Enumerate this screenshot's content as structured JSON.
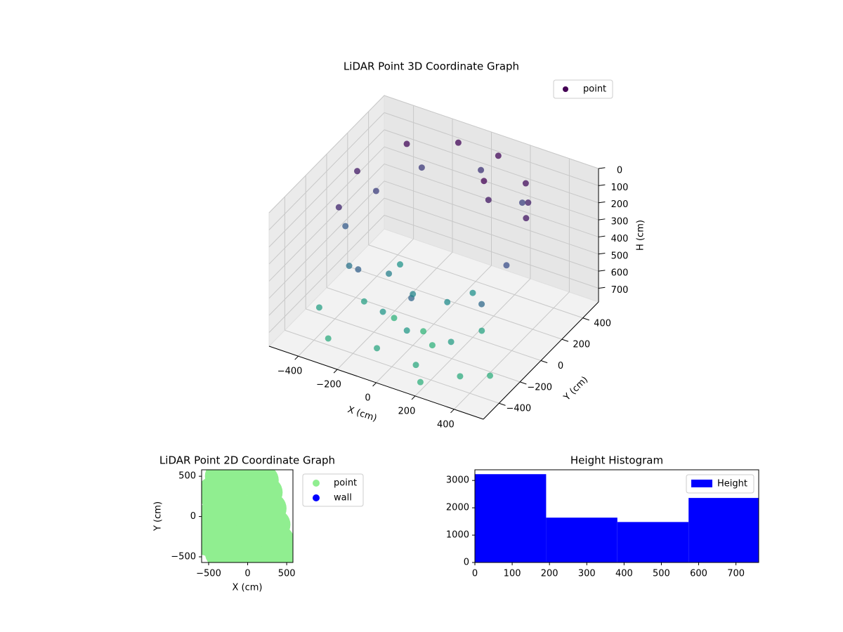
{
  "chart_data": [
    {
      "type": "scatter3d",
      "title": "LiDAR Point 3D Coordinate Graph",
      "xlabel": "X (cm)",
      "ylabel": "Y (cm)",
      "zlabel": "H (cm)",
      "xlim": [
        -550,
        550
      ],
      "ylim": [
        -550,
        550
      ],
      "zlim": [
        780,
        0
      ],
      "xticks": [
        {
          "value": -400,
          "label": "−400"
        },
        {
          "value": -200,
          "label": "−200"
        },
        0,
        200,
        400
      ],
      "yticks": [
        {
          "value": -400,
          "label": "−400"
        },
        {
          "value": -200,
          "label": "−200"
        },
        0,
        200,
        400
      ],
      "zticks": [
        0,
        100,
        200,
        300,
        400,
        500,
        600,
        700
      ],
      "colormap": [
        "#440154",
        "#3b528b",
        "#21918c",
        "#35b779"
      ],
      "legend": "upper right",
      "series": [
        {
          "name": "point",
          "color": "#440154",
          "x": [
            -300,
            -100,
            100,
            300,
            420,
            -420,
            -380,
            150,
            200,
            350,
            -350,
            -250,
            0,
            250,
            400,
            -400,
            -200,
            100,
            380,
            -300,
            -150,
            0,
            150,
            200,
            -200,
            -100,
            50,
            250,
            -250,
            300,
            -50,
            150,
            350,
            -400,
            450,
            -150,
            0,
            100,
            -300,
            200
          ],
          "y": [
            300,
            420,
            430,
            320,
            100,
            50,
            -200,
            200,
            150,
            250,
            100,
            350,
            450,
            380,
            -50,
            -100,
            -350,
            -400,
            -250,
            -250,
            -150,
            -200,
            -150,
            0,
            50,
            -300,
            -350,
            -300,
            -200,
            -100,
            -450,
            -450,
            -400,
            -350,
            -300,
            -100,
            -100,
            -200,
            -450,
            -500
          ],
          "z": [
            30,
            20,
            25,
            40,
            60,
            80,
            120,
            10,
            70,
            90,
            200,
            180,
            160,
            210,
            250,
            300,
            320,
            340,
            360,
            400,
            450,
            480,
            500,
            520,
            540,
            560,
            580,
            600,
            620,
            640,
            660,
            680,
            700,
            620,
            720,
            740,
            760,
            740,
            700,
            730
          ]
        }
      ]
    },
    {
      "type": "scatter",
      "title": "LiDAR Point 2D Coordinate Graph",
      "xlabel": "X (cm)",
      "ylabel": "Y (cm)",
      "xlim": [
        -590,
        580
      ],
      "ylim": [
        -570,
        580
      ],
      "xticks": [
        {
          "value": -500,
          "label": "−500"
        },
        0,
        500
      ],
      "yticks": [
        {
          "value": -500,
          "label": "−500"
        },
        0,
        500
      ],
      "legend": "outside right",
      "series": [
        {
          "name": "point",
          "color": "#90ee90",
          "x": [
            -500,
            -450,
            -450,
            -350,
            -250,
            -100,
            0,
            100,
            200,
            250,
            300,
            350,
            400,
            450,
            520,
            200,
            0,
            -200,
            -350,
            -300,
            -200,
            0,
            100,
            -100,
            150
          ],
          "y": [
            -300,
            0,
            300,
            500,
            550,
            520,
            450,
            500,
            450,
            300,
            100,
            -100,
            -300,
            -450,
            -520,
            -500,
            -520,
            -520,
            -450,
            -100,
            200,
            0,
            -200,
            -300,
            150
          ]
        },
        {
          "name": "wall",
          "color": "#0000ff",
          "x": [],
          "y": []
        }
      ]
    },
    {
      "type": "histogram",
      "title": "Height Histogram",
      "bins": [
        0,
        191,
        382,
        573,
        761
      ],
      "values": [
        3230,
        1640,
        1480,
        2360
      ],
      "xlim": [
        0,
        761
      ],
      "ylim": [
        0,
        3390
      ],
      "xticks": [
        0,
        100,
        200,
        300,
        400,
        500,
        600,
        700
      ],
      "yticks": [
        0,
        1000,
        2000,
        3000
      ],
      "legend": "upper right",
      "series_name": "Height",
      "color": "#0000ff"
    }
  ]
}
